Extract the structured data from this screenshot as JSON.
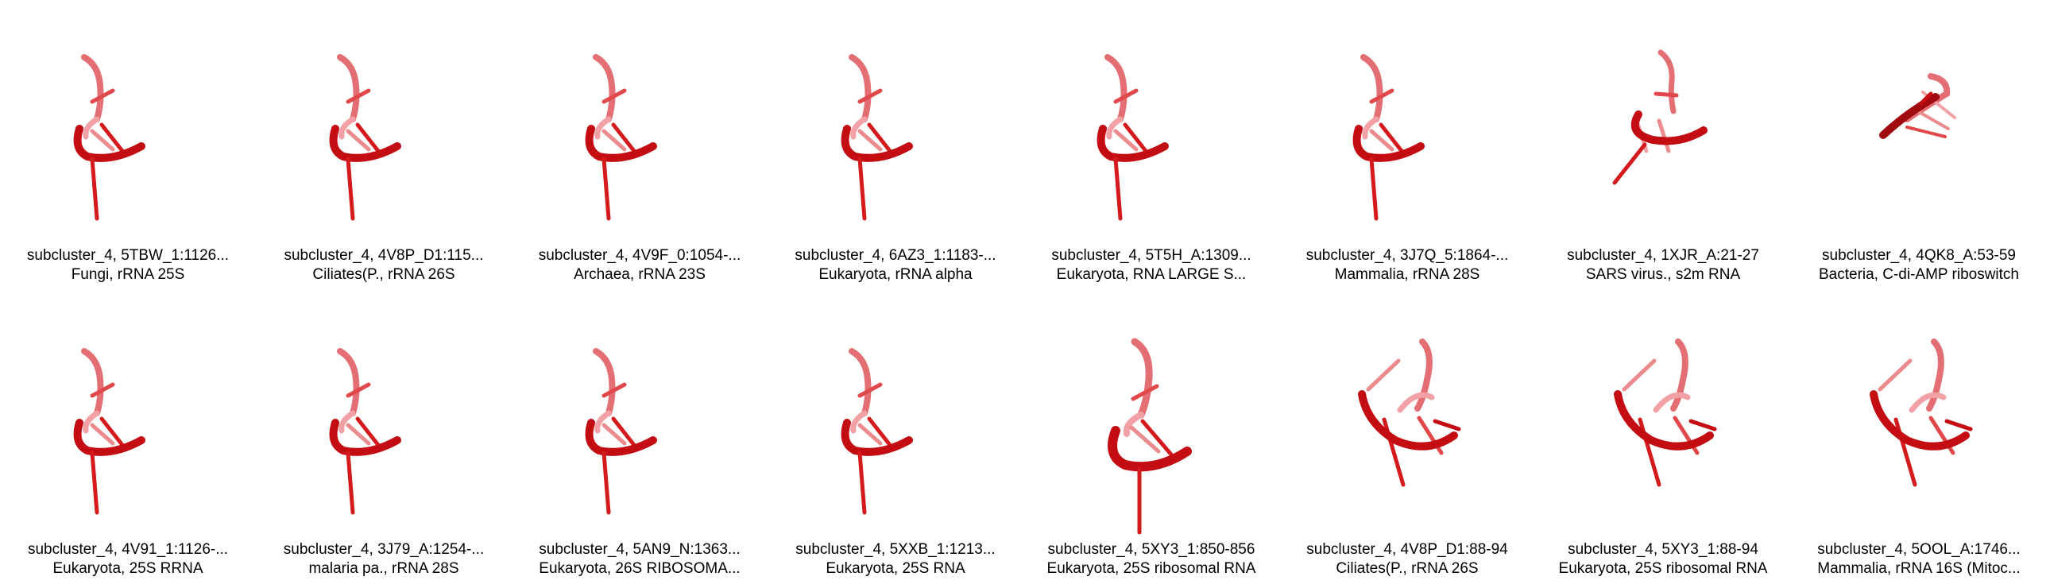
{
  "colors": {
    "strand_dark": "#c40d12",
    "strand_mid": "#dc2a2a",
    "strand_light": "#f0a0a0",
    "background": "#ffffff"
  },
  "panels": [
    {
      "title": "subcluster_4, 5TBW_1:1126...",
      "subtitle": "Fungi, rRNA 25S",
      "icon": "rna-3d-structure-icon",
      "style": "compact"
    },
    {
      "title": "subcluster_4, 4V8P_D1:115...",
      "subtitle": "Ciliates(P., rRNA 26S",
      "icon": "rna-3d-structure-icon",
      "style": "compact"
    },
    {
      "title": "subcluster_4, 4V9F_0:1054-...",
      "subtitle": "Archaea, rRNA 23S",
      "icon": "rna-3d-structure-icon",
      "style": "compact"
    },
    {
      "title": "subcluster_4, 6AZ3_1:1183-...",
      "subtitle": "Eukaryota, rRNA alpha",
      "icon": "rna-3d-structure-icon",
      "style": "compact"
    },
    {
      "title": "subcluster_4, 5T5H_A:1309...",
      "subtitle": "Eukaryota, RNA LARGE S...",
      "icon": "rna-3d-structure-icon",
      "style": "compact"
    },
    {
      "title": "subcluster_4, 3J7Q_5:1864-...",
      "subtitle": "Mammalia, rRNA 28S",
      "icon": "rna-3d-structure-icon",
      "style": "compact"
    },
    {
      "title": "subcluster_4, 1XJR_A:21-27",
      "subtitle": "SARS virus., s2m RNA",
      "icon": "rna-3d-structure-icon",
      "style": "tilted"
    },
    {
      "title": "subcluster_4, 4QK8_A:53-59",
      "subtitle": "Bacteria, C-di-AMP riboswitch",
      "icon": "rna-3d-structure-icon",
      "style": "flat"
    },
    {
      "title": "subcluster_4, 4V91_1:1126-...",
      "subtitle": "Eukaryota, 25S RRNA",
      "icon": "rna-3d-structure-icon",
      "style": "compact"
    },
    {
      "title": "subcluster_4, 3J79_A:1254-...",
      "subtitle": "malaria pa., rRNA 28S",
      "icon": "rna-3d-structure-icon",
      "style": "compact"
    },
    {
      "title": "subcluster_4, 5AN9_N:1363...",
      "subtitle": "Eukaryota, 26S RIBOSOMA...",
      "icon": "rna-3d-structure-icon",
      "style": "compact"
    },
    {
      "title": "subcluster_4, 5XXB_1:1213...",
      "subtitle": "Eukaryota, 25S RNA",
      "icon": "rna-3d-structure-icon",
      "style": "compact"
    },
    {
      "title": "subcluster_4, 5XY3_1:850-856",
      "subtitle": "Eukaryota, 25S ribosomal RNA",
      "icon": "rna-3d-structure-icon",
      "style": "large"
    },
    {
      "title": "subcluster_4, 4V8P_D1:88-94",
      "subtitle": "Ciliates(P., rRNA 26S",
      "icon": "rna-3d-structure-icon",
      "style": "wide"
    },
    {
      "title": "subcluster_4, 5XY3_1:88-94",
      "subtitle": "Eukaryota, 25S ribosomal RNA",
      "icon": "rna-3d-structure-icon",
      "style": "wide"
    },
    {
      "title": "subcluster_4, 5OOL_A:1746...",
      "subtitle": "Mammalia, rRNA 16S (Mitoc...",
      "icon": "rna-3d-structure-icon",
      "style": "wide"
    }
  ]
}
